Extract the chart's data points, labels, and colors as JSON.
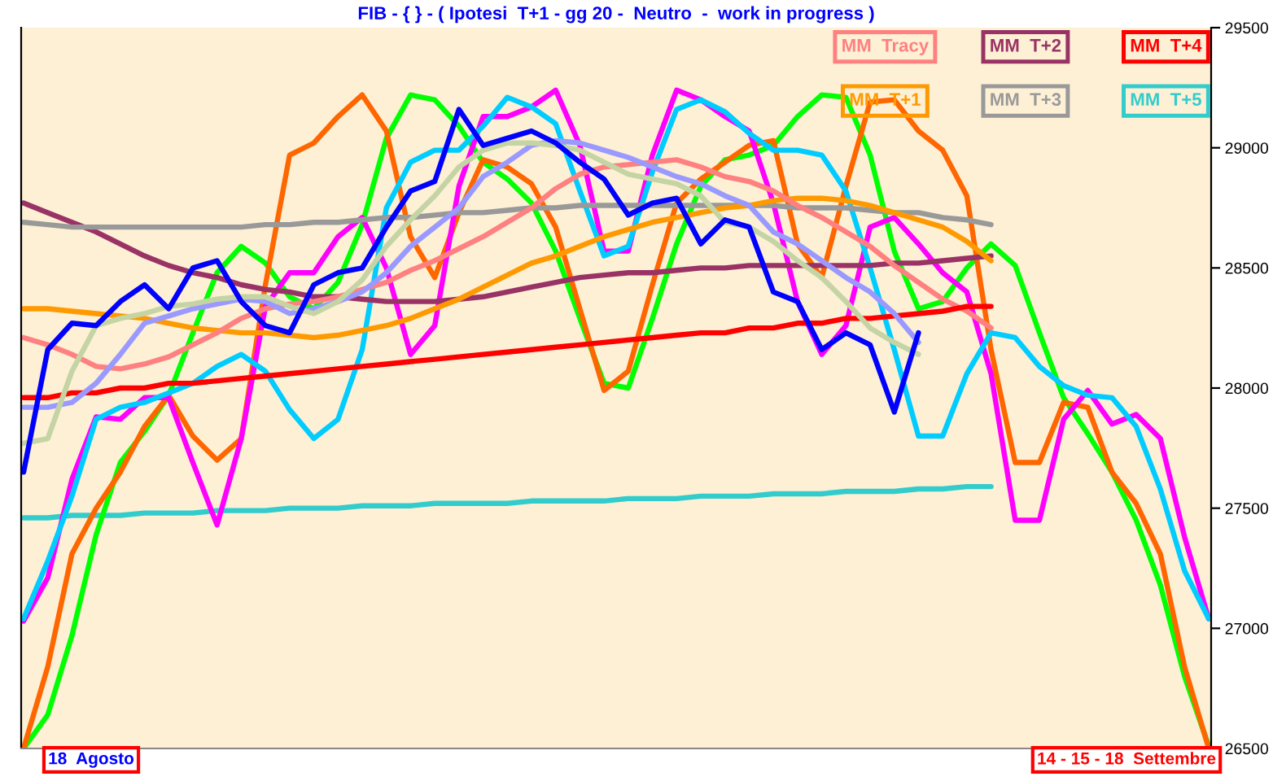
{
  "chart_data": {
    "type": "line",
    "title": "FIB - { } - ( Ipotesi  T+1 - gg 20 -  Neutro  -  work in progress )",
    "categories": [
      null,
      null,
      null,
      null,
      null,
      null,
      null,
      null,
      null,
      null,
      null,
      null,
      null,
      null,
      null,
      null,
      null,
      null,
      null,
      null,
      null,
      null,
      null,
      null,
      null,
      null,
      null,
      null,
      null,
      null,
      null,
      null,
      null,
      null,
      null,
      null,
      null,
      null,
      null,
      null,
      null,
      null,
      null,
      null,
      null,
      null,
      null,
      null,
      null,
      null
    ],
    "series": [
      {
        "name": "MM  T+5",
        "color": "#33cccc",
        "values": [
          27460,
          27460,
          27470,
          27470,
          27470,
          27480,
          27480,
          27480,
          27490,
          27490,
          27490,
          27500,
          27500,
          27500,
          27510,
          27510,
          27510,
          27520,
          27520,
          27520,
          27520,
          27530,
          27530,
          27530,
          27530,
          27540,
          27540,
          27540,
          27550,
          27550,
          27550,
          27560,
          27560,
          27560,
          27570,
          27570,
          27570,
          27580,
          27580,
          27590,
          27590,
          null,
          null,
          null,
          null,
          null,
          null,
          null,
          null,
          null
        ]
      },
      {
        "color": "#00ff00",
        "values": [
          26500,
          26640,
          26970,
          27390,
          27690,
          27820,
          27970,
          28230,
          28480,
          28590,
          28520,
          28380,
          28330,
          28440,
          28680,
          29040,
          29220,
          29200,
          29090,
          28940,
          28870,
          28770,
          28570,
          28290,
          28020,
          28000,
          28290,
          28600,
          28840,
          28950,
          28970,
          29010,
          29130,
          29220,
          29210,
          28970,
          28570,
          28330,
          28360,
          28500,
          28600,
          28510,
          28230,
          27960,
          27810,
          27650,
          27450,
          27180,
          26800,
          26510
        ]
      },
      {
        "color": "#ff6600",
        "values": [
          26500,
          26840,
          27310,
          27500,
          27650,
          27840,
          27970,
          27800,
          27700,
          27790,
          28430,
          28970,
          29020,
          29130,
          29220,
          29070,
          28630,
          28460,
          28730,
          28950,
          28920,
          28850,
          28670,
          28330,
          27990,
          28070,
          28430,
          28770,
          28870,
          28940,
          29010,
          29030,
          28600,
          28460,
          28840,
          29190,
          29200,
          29070,
          28990,
          28800,
          28160,
          27690,
          27690,
          27940,
          27920,
          27650,
          27520,
          27310,
          26840,
          26500
        ]
      },
      {
        "color": "#ff00ff",
        "values": [
          27030,
          27210,
          27620,
          27880,
          27870,
          27960,
          27960,
          27690,
          27430,
          27790,
          28340,
          28480,
          28480,
          28630,
          28710,
          28500,
          28140,
          28260,
          28840,
          29130,
          29130,
          29170,
          29240,
          29010,
          28570,
          28570,
          28970,
          29240,
          29200,
          29130,
          29070,
          28770,
          28360,
          28140,
          28260,
          28670,
          28710,
          28600,
          28480,
          28400,
          28060,
          27450,
          27450,
          27870,
          27990,
          27850,
          27890,
          27790,
          27380,
          27040
        ]
      },
      {
        "color": "#00ccff",
        "values": [
          27040,
          27280,
          27550,
          27870,
          27920,
          27940,
          27980,
          28020,
          28090,
          28140,
          28070,
          27910,
          27790,
          27870,
          28160,
          28750,
          28940,
          28990,
          28990,
          29090,
          29210,
          29170,
          29100,
          28820,
          28550,
          28590,
          28900,
          29160,
          29200,
          29150,
          29060,
          28990,
          28990,
          28970,
          28820,
          28500,
          28160,
          27800,
          27800,
          28060,
          28230,
          28210,
          28090,
          28010,
          27970,
          27960,
          27840,
          27580,
          27240,
          27040
        ]
      },
      {
        "name": "MM  T+2",
        "color": "#993366",
        "values": [
          28770,
          28730,
          28690,
          28650,
          28600,
          28550,
          28510,
          28480,
          28460,
          28430,
          28410,
          28400,
          28380,
          28380,
          28370,
          28360,
          28360,
          28360,
          28370,
          28380,
          28400,
          28420,
          28440,
          28460,
          28470,
          28480,
          28480,
          28490,
          28500,
          28500,
          28510,
          28510,
          28510,
          28510,
          28510,
          28510,
          28520,
          28520,
          28530,
          28540,
          28550,
          null,
          null,
          null,
          null,
          null,
          null,
          null,
          null,
          null
        ]
      },
      {
        "name": "MM  T+3",
        "color": "#999999",
        "values": [
          28690,
          28680,
          28670,
          28670,
          28670,
          28670,
          28670,
          28670,
          28670,
          28670,
          28680,
          28680,
          28690,
          28690,
          28700,
          28710,
          28710,
          28720,
          28730,
          28730,
          28740,
          28750,
          28750,
          28760,
          28760,
          28760,
          28760,
          28760,
          28760,
          28760,
          28760,
          28760,
          28750,
          28750,
          28750,
          28740,
          28730,
          28730,
          28710,
          28700,
          28680,
          null,
          null,
          null,
          null,
          null,
          null,
          null,
          null,
          null
        ]
      },
      {
        "name": "MM  T+1",
        "color": "#ff9900",
        "values": [
          28330,
          28330,
          28320,
          28310,
          28300,
          28290,
          28270,
          28250,
          28240,
          28230,
          28230,
          28220,
          28210,
          28220,
          28240,
          28260,
          28290,
          28330,
          28370,
          28420,
          28470,
          28520,
          28550,
          28590,
          28630,
          28660,
          28690,
          28710,
          28730,
          28750,
          28760,
          28780,
          28790,
          28790,
          28780,
          28760,
          28730,
          28700,
          28670,
          28610,
          28530,
          null,
          null,
          null,
          null,
          null,
          null,
          null,
          null,
          null
        ]
      },
      {
        "name": "MM  Tracy",
        "color": "#ff8080",
        "values": [
          28210,
          28180,
          28140,
          28090,
          28080,
          28100,
          28130,
          28180,
          28230,
          28290,
          28330,
          28350,
          28360,
          28380,
          28410,
          28440,
          28490,
          28530,
          28580,
          28630,
          28690,
          28750,
          28830,
          28890,
          28920,
          28930,
          28940,
          28950,
          28920,
          28880,
          28860,
          28820,
          28760,
          28710,
          28650,
          28590,
          28510,
          28440,
          28370,
          28320,
          28250,
          null,
          null,
          null,
          null,
          null,
          null,
          null,
          null,
          null
        ]
      },
      {
        "name": "MM  T+4",
        "color": "#ff0000",
        "values": [
          27960,
          27960,
          27980,
          27980,
          28000,
          28000,
          28020,
          28020,
          28030,
          28040,
          28050,
          28060,
          28070,
          28080,
          28090,
          28100,
          28110,
          28120,
          28130,
          28140,
          28150,
          28160,
          28170,
          28180,
          28190,
          28200,
          28210,
          28220,
          28230,
          28230,
          28250,
          28250,
          28270,
          28270,
          28290,
          28290,
          28300,
          28310,
          28320,
          28340,
          28340,
          null,
          null,
          null,
          null,
          null,
          null,
          null,
          null,
          null
        ]
      },
      {
        "color": "#9999ff",
        "values": [
          27920,
          27920,
          27940,
          28020,
          28140,
          28270,
          28300,
          28330,
          28350,
          28370,
          28360,
          28310,
          28330,
          28360,
          28400,
          28480,
          28590,
          28670,
          28750,
          28880,
          28940,
          29010,
          29030,
          29020,
          28990,
          28960,
          28920,
          28880,
          28850,
          28800,
          28760,
          28650,
          28600,
          28530,
          28460,
          28400,
          28310,
          28190,
          null,
          null,
          null,
          null,
          null,
          null,
          null,
          null,
          null,
          null,
          null,
          null
        ]
      },
      {
        "color": "#c4d4a4",
        "values": [
          27770,
          27790,
          28070,
          28260,
          28290,
          28310,
          28340,
          28350,
          28370,
          28380,
          28380,
          28340,
          28310,
          28360,
          28450,
          28590,
          28700,
          28800,
          28920,
          28990,
          29020,
          29020,
          29010,
          28990,
          28940,
          28890,
          28870,
          28850,
          28800,
          28690,
          28670,
          28610,
          28530,
          28460,
          28360,
          28250,
          28190,
          28140,
          null,
          null,
          null,
          null,
          null,
          null,
          null,
          null,
          null,
          null,
          null,
          null
        ]
      },
      {
        "color": "#0000ff",
        "values": [
          27650,
          28160,
          28270,
          28260,
          28360,
          28430,
          28330,
          28500,
          28530,
          28360,
          28260,
          28230,
          28430,
          28480,
          28500,
          28670,
          28820,
          28860,
          29160,
          29010,
          29040,
          29070,
          29020,
          28940,
          28870,
          28720,
          28770,
          28790,
          28600,
          28700,
          28670,
          28400,
          28360,
          28160,
          28230,
          28180,
          27900,
          28230,
          null,
          null,
          null,
          null,
          null,
          null,
          null,
          null,
          null,
          null,
          null,
          null
        ]
      }
    ],
    "ylim": [
      26500,
      29500
    ],
    "yticks": [
      26500,
      27000,
      27500,
      28000,
      28500,
      29000,
      29500
    ],
    "tick_labels": "y",
    "grid": false,
    "legend": "top right",
    "annotations": [
      "18  Agosto",
      "14 - 15 - 18  Settembre"
    ]
  }
}
